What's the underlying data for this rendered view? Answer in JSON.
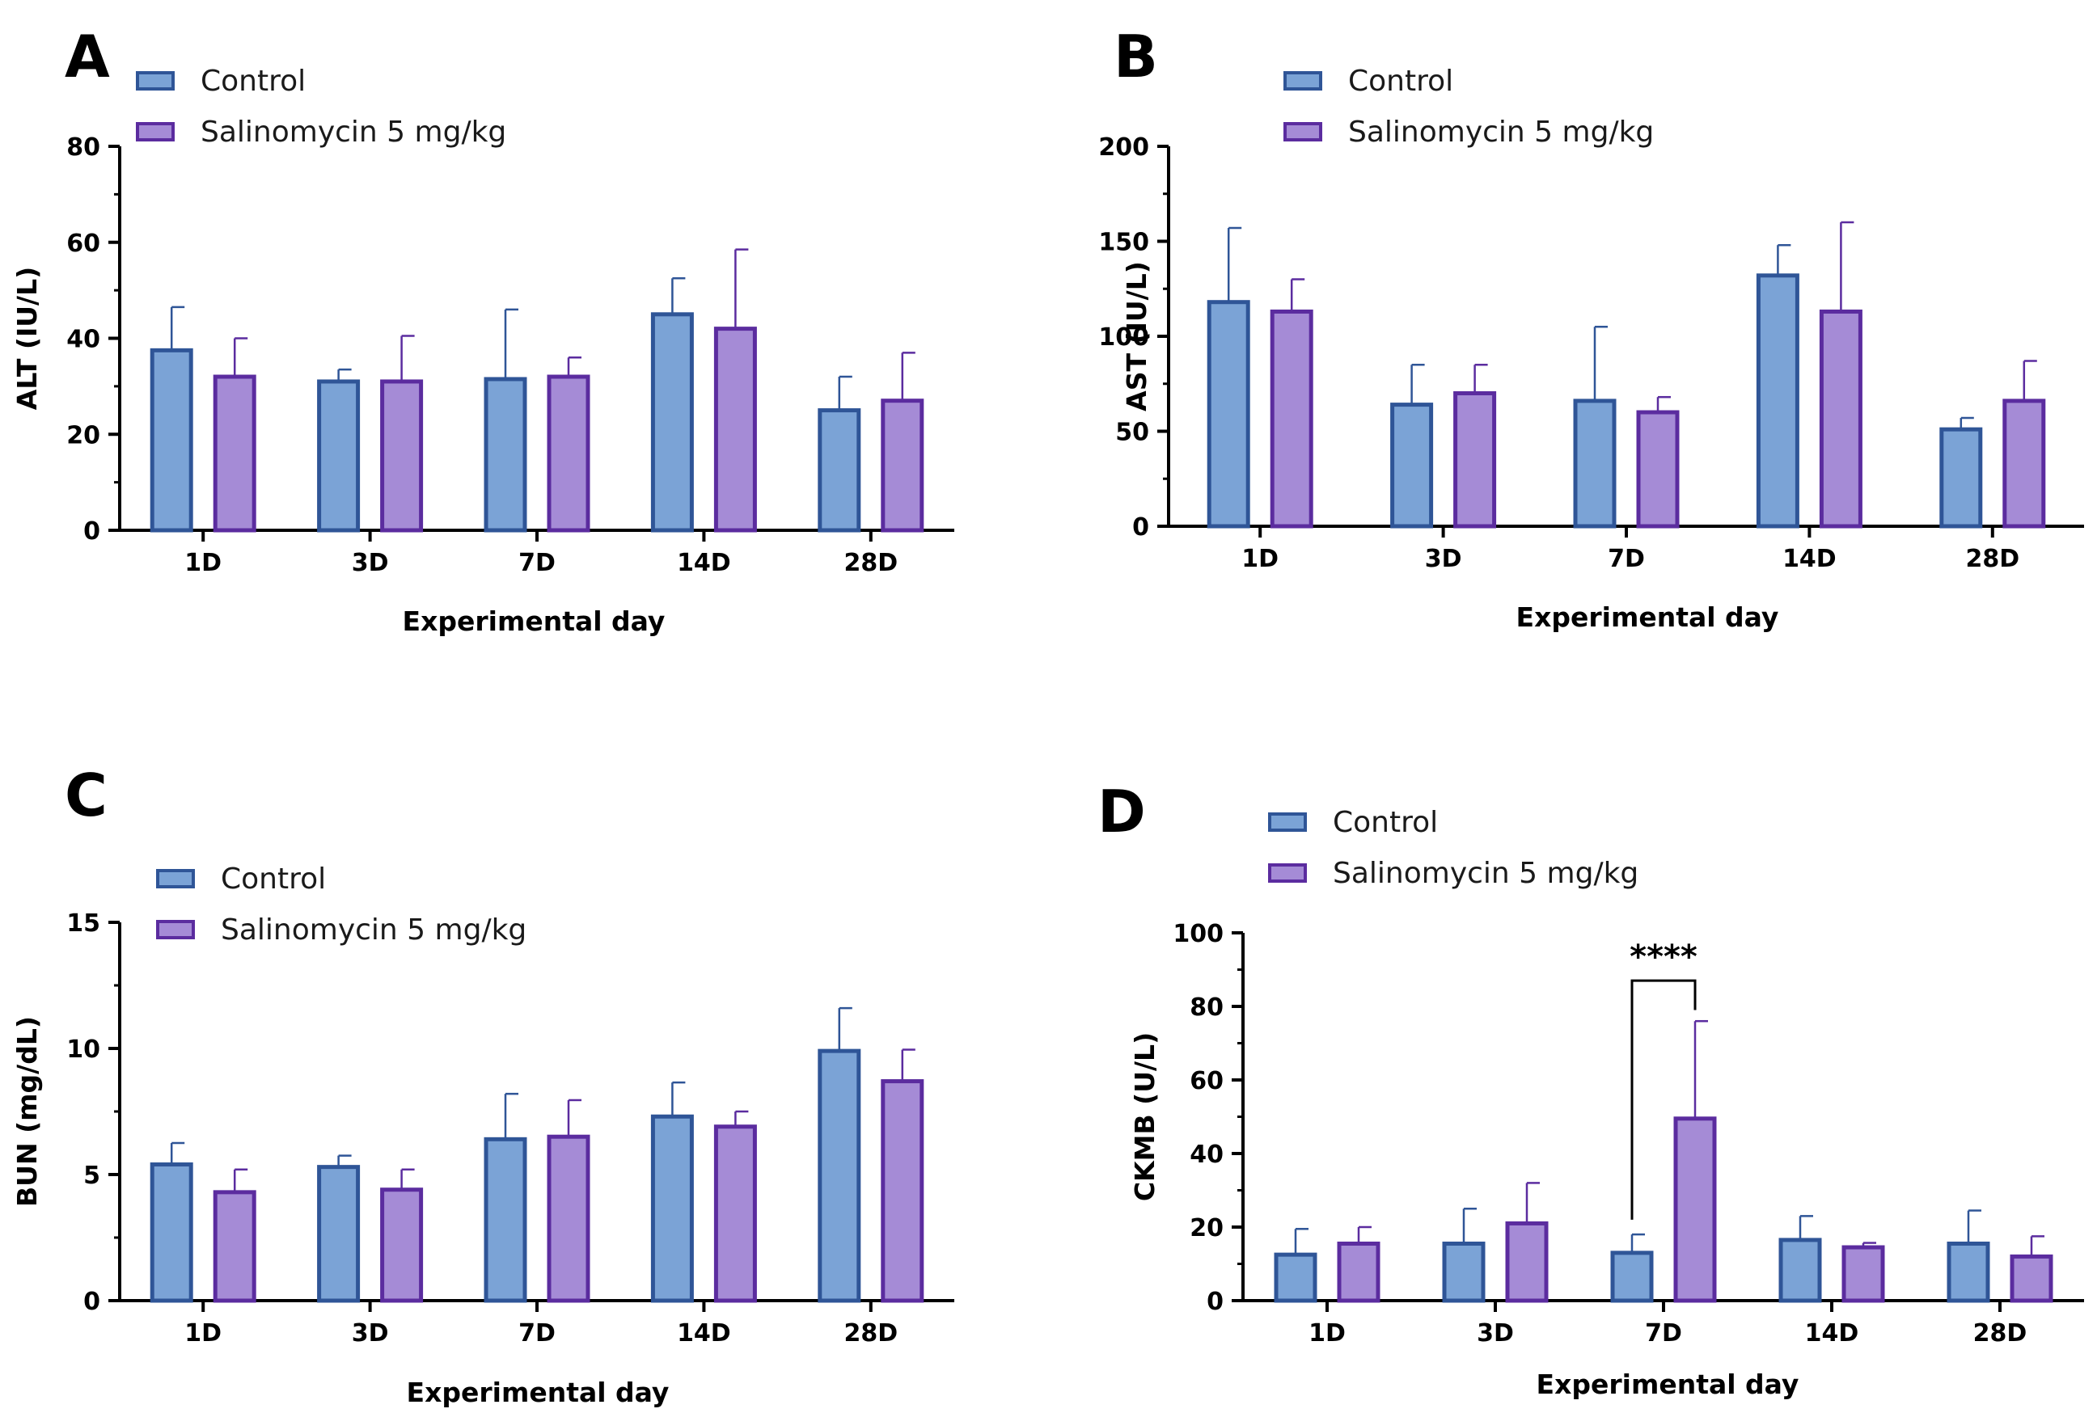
{
  "colors": {
    "control_fill": "#7ba3d6",
    "control_stroke": "#2f5597",
    "salino_fill": "#a58bd6",
    "salino_stroke": "#5b2c9f",
    "axis": "#000000"
  },
  "chart_data": [
    {
      "type": "bar",
      "panel": "A",
      "categories": [
        "1D",
        "3D",
        "7D",
        "14D",
        "28D"
      ],
      "series": [
        {
          "name": "Control",
          "values": [
            37.5,
            31,
            31.5,
            45,
            25
          ],
          "errors": [
            9,
            2.5,
            14.5,
            7.5,
            7
          ]
        },
        {
          "name": "Salinomycin 5 mg/kg",
          "values": [
            32,
            31,
            32,
            42,
            27
          ],
          "errors": [
            8,
            9.5,
            4,
            16.5,
            10
          ]
        }
      ],
      "title": "",
      "xlabel": "Experimental day",
      "ylabel": "ALT (IU/L)",
      "ylim": [
        0,
        80
      ],
      "yticks": [
        "0",
        "20",
        "40",
        "60",
        "80"
      ],
      "legend": "top-left",
      "grid": false
    },
    {
      "type": "bar",
      "panel": "B",
      "categories": [
        "1D",
        "3D",
        "7D",
        "14D",
        "28D"
      ],
      "series": [
        {
          "name": "Control",
          "values": [
            118,
            64,
            66,
            132,
            51
          ],
          "errors": [
            39,
            21,
            39,
            16,
            6
          ]
        },
        {
          "name": "Salinomycin 5 mg/kg",
          "values": [
            113,
            70,
            60,
            113,
            66
          ],
          "errors": [
            17,
            15,
            8,
            47,
            21
          ]
        }
      ],
      "title": "",
      "xlabel": "Experimental day",
      "ylabel": "AST (IU/L)",
      "ylim": [
        0,
        200
      ],
      "yticks": [
        "0",
        "50",
        "100",
        "150",
        "200"
      ],
      "legend": "top-left",
      "grid": false
    },
    {
      "type": "bar",
      "panel": "C",
      "categories": [
        "1D",
        "3D",
        "7D",
        "14D",
        "28D"
      ],
      "series": [
        {
          "name": "Control",
          "values": [
            5.4,
            5.3,
            6.4,
            7.3,
            9.9
          ],
          "errors": [
            0.85,
            0.45,
            1.8,
            1.35,
            1.7
          ]
        },
        {
          "name": "Salinomycin 5 mg/kg",
          "values": [
            4.3,
            4.4,
            6.5,
            6.9,
            8.7
          ],
          "errors": [
            0.9,
            0.8,
            1.45,
            0.6,
            1.25
          ]
        }
      ],
      "title": "",
      "xlabel": "Experimental day",
      "ylabel": "BUN (mg/dL)",
      "ylim": [
        0,
        15
      ],
      "yticks": [
        "0",
        "5",
        "10",
        "15"
      ],
      "legend": "top-left",
      "grid": false
    },
    {
      "type": "bar",
      "panel": "D",
      "categories": [
        "1D",
        "3D",
        "7D",
        "14D",
        "28D"
      ],
      "series": [
        {
          "name": "Control",
          "values": [
            12.5,
            15.5,
            13,
            16.5,
            15.5
          ],
          "errors": [
            7,
            9.5,
            5,
            6.5,
            9
          ]
        },
        {
          "name": "Salinomycin 5 mg/kg",
          "values": [
            15.5,
            21,
            49.5,
            14.5,
            12
          ],
          "errors": [
            4.5,
            11,
            26.5,
            1.2,
            5.5
          ]
        }
      ],
      "title": "",
      "xlabel": "Experimental day",
      "ylabel": "CKMB (U/L)",
      "ylim": [
        0,
        100
      ],
      "yticks": [
        "0",
        "20",
        "40",
        "60",
        "80",
        "100"
      ],
      "legend": "top-left",
      "grid": false,
      "annotation": {
        "text": "****",
        "category": "7D",
        "y": 87
      }
    }
  ]
}
